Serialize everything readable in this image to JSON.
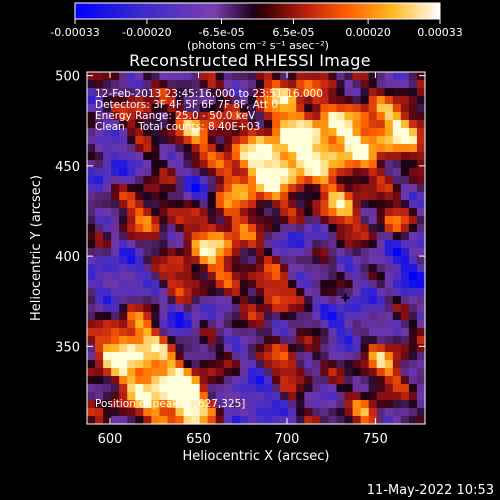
{
  "colorbar": {
    "ticks": [
      "-0.00033",
      "-0.00020",
      "-6.5e-05",
      "6.5e-05",
      "0.00020",
      "0.00033"
    ],
    "tick_values": [
      -0.00033,
      -0.0002,
      -6.5e-05,
      6.5e-05,
      0.0002,
      0.00033
    ],
    "unit_label": "(photons cm⁻² s⁻¹ asec⁻²)"
  },
  "chart_data": {
    "type": "heatmap",
    "title": "Reconstructed RHESSI Image",
    "xlabel": "Heliocentric X (arcsec)",
    "ylabel": "Heliocentric Y (arcsec)",
    "xlim": [
      587,
      778
    ],
    "ylim": [
      307,
      502
    ],
    "xticks": [
      600,
      650,
      700,
      750
    ],
    "yticks": [
      350,
      400,
      450,
      500
    ],
    "value_range": [
      -0.00033,
      0.00033
    ],
    "annotations": {
      "time": "12-Feb-2013 23:45:16.000 to 23:51:16.000",
      "detectors": "Detectors: 3F 4F 5F 6F 7F 8F, Att 0",
      "energy": "Energy Range: 25.0 - 50.0 keV",
      "clean": "Clean    Total counts: 8.40E+03",
      "peak": "Position of peak = [627,325]"
    },
    "peak_position": [
      627,
      325
    ],
    "marker_position": [
      733,
      377
    ]
  },
  "footer": {
    "timestamp": "11-May-2022 10:53"
  },
  "colors": {
    "background": "#000000",
    "foreground": "#ffffff",
    "colormap": [
      "#0000ff",
      "#3a1fb0",
      "#6a33a8",
      "#8a3fa0",
      "#220022",
      "#8a1010",
      "#c83010",
      "#ff6a00",
      "#ffc020",
      "#ffffd0"
    ]
  }
}
